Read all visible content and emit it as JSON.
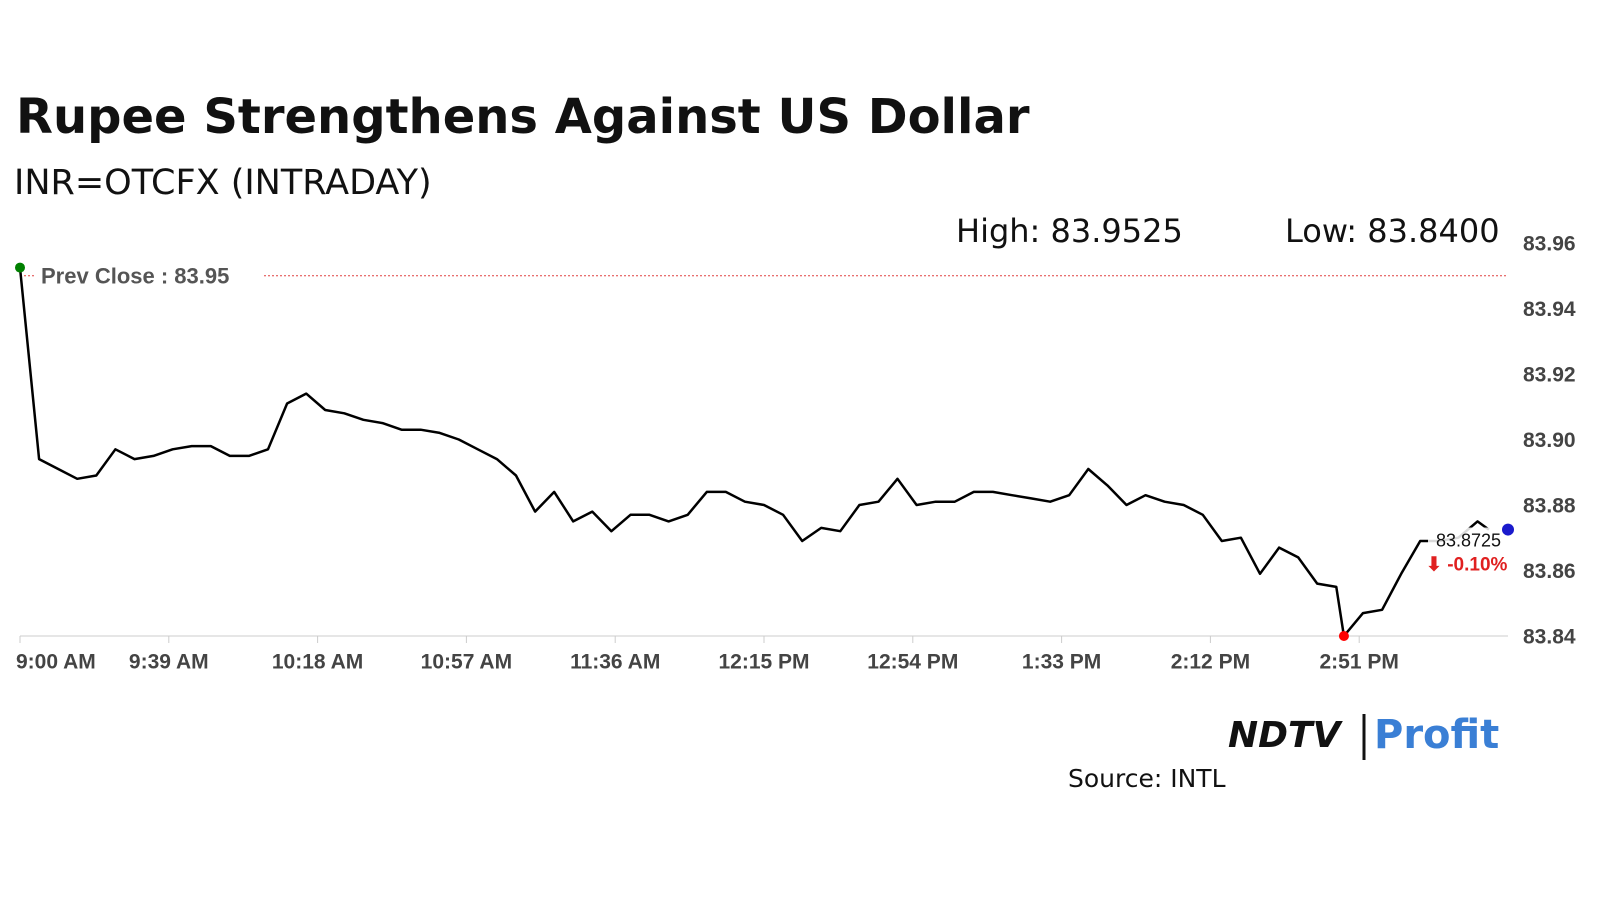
{
  "chart_data": {
    "type": "line",
    "title": "Rupee Strengthens Against US Dollar",
    "subtitle": "INR=OTCFX (INTRADAY)",
    "high_label": "High: 83.9525",
    "low_label": "Low: 83.8400",
    "prev_close_label": "Prev Close : 83.95",
    "prev_close": 83.95,
    "last_label": "83.8725",
    "change_label": "⬇ -0.10%",
    "x": [
      "9:00 AM",
      "9:05 AM",
      "9:10 AM",
      "9:15 AM",
      "9:20 AM",
      "9:25 AM",
      "9:30 AM",
      "9:35 AM",
      "9:40 AM",
      "9:45 AM",
      "9:50 AM",
      "9:55 AM",
      "10:00 AM",
      "10:05 AM",
      "10:10 AM",
      "10:15 AM",
      "10:20 AM",
      "10:25 AM",
      "10:30 AM",
      "10:35 AM",
      "10:40 AM",
      "10:45 AM",
      "10:50 AM",
      "10:55 AM",
      "11:00 AM",
      "11:05 AM",
      "11:10 AM",
      "11:15 AM",
      "11:20 AM",
      "11:25 AM",
      "11:30 AM",
      "11:35 AM",
      "11:40 AM",
      "11:45 AM",
      "11:50 AM",
      "11:55 AM",
      "12:00 PM",
      "12:05 PM",
      "12:10 PM",
      "12:15 PM",
      "12:20 PM",
      "12:25 PM",
      "12:30 PM",
      "12:35 PM",
      "12:40 PM",
      "12:45 PM",
      "12:50 PM",
      "12:55 PM",
      "1:00 PM",
      "1:05 PM",
      "1:10 PM",
      "1:15 PM",
      "1:20 PM",
      "1:25 PM",
      "1:30 PM",
      "1:35 PM",
      "1:40 PM",
      "1:45 PM",
      "1:50 PM",
      "1:55 PM",
      "2:00 PM",
      "2:05 PM",
      "2:10 PM",
      "2:15 PM",
      "2:20 PM",
      "2:25 PM",
      "2:30 PM",
      "2:35 PM",
      "2:40 PM",
      "2:45 PM",
      "2:47 PM",
      "2:52 PM",
      "2:57 PM",
      "3:02 PM",
      "3:07 PM",
      "3:12 PM",
      "3:17 PM",
      "3:22 PM",
      "3:25 PM"
    ],
    "values": [
      83.9525,
      83.894,
      83.891,
      83.888,
      83.889,
      83.897,
      83.894,
      83.895,
      83.897,
      83.898,
      83.898,
      83.895,
      83.895,
      83.897,
      83.911,
      83.914,
      83.909,
      83.908,
      83.906,
      83.905,
      83.903,
      83.903,
      83.902,
      83.9,
      83.897,
      83.894,
      83.889,
      83.878,
      83.884,
      83.875,
      83.878,
      83.872,
      83.877,
      83.877,
      83.875,
      83.877,
      83.884,
      83.884,
      83.881,
      83.88,
      83.877,
      83.869,
      83.873,
      83.872,
      83.88,
      83.881,
      83.888,
      83.88,
      83.881,
      83.881,
      83.884,
      83.884,
      83.883,
      83.882,
      83.881,
      83.883,
      83.891,
      83.886,
      83.88,
      83.883,
      83.881,
      83.88,
      83.877,
      83.869,
      83.87,
      83.859,
      83.867,
      83.864,
      83.856,
      83.855,
      83.84,
      83.847,
      83.848,
      83.859,
      83.869,
      83.869,
      83.87,
      83.875,
      83.8725
    ],
    "color": "#000000",
    "xlim": [
      "9:00 AM",
      "3:30 PM"
    ],
    "xticks": [
      "9:00 AM",
      "9:39 AM",
      "10:18 AM",
      "10:57 AM",
      "11:36 AM",
      "12:15 PM",
      "12:54 PM",
      "1:33 PM",
      "2:12 PM",
      "2:51 PM"
    ],
    "ylim": [
      83.84,
      83.96
    ],
    "yticks": [
      83.84,
      83.86,
      83.88,
      {
        "value": 83.9,
        "label": "83.90"
      },
      83.92,
      83.94,
      83.96
    ],
    "source": "Source: INTL",
    "logo_left": "NDTV",
    "logo_right": "Profit"
  }
}
